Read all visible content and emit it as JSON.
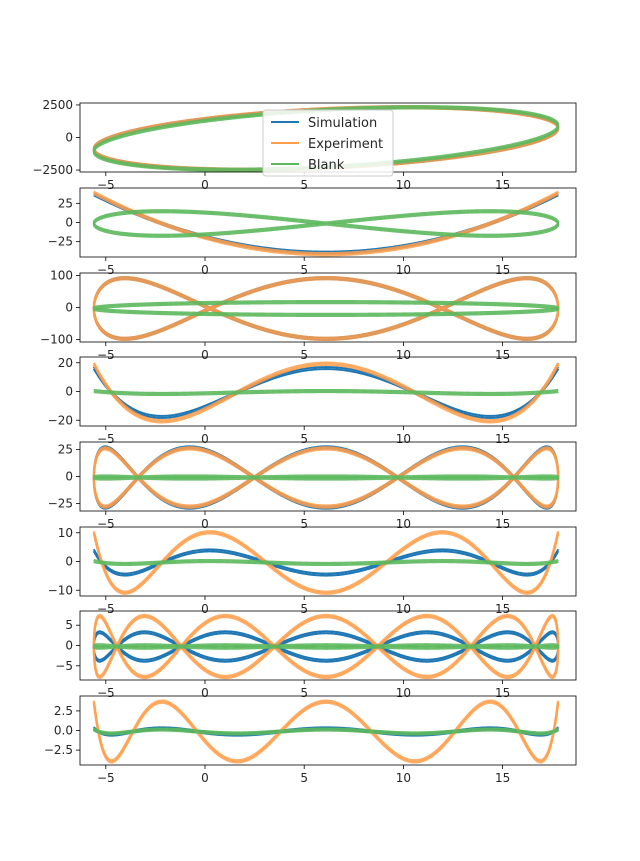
{
  "colors": {
    "simulation": "#1f77b4",
    "experiment": "#ff9e4a",
    "blank": "#5cb85c"
  },
  "legend": {
    "placement": "top-center",
    "entries": [
      "Simulation",
      "Experiment",
      "Blank"
    ]
  },
  "chart_data": [
    {
      "type": "line",
      "xlim": [
        -6.3,
        18.7
      ],
      "ylim": [
        -2650,
        2650
      ],
      "yticks": [
        -2500,
        0,
        2500
      ],
      "xticks": [
        -5,
        0,
        5,
        10,
        15
      ],
      "series": [
        {
          "name": "Simulation",
          "amplitude": 2400,
          "harmonic": 1,
          "phase_deg": 20
        },
        {
          "name": "Experiment",
          "amplitude": 2400,
          "harmonic": 1,
          "phase_deg": 20
        },
        {
          "name": "Blank",
          "amplitude": 2400,
          "harmonic": 1,
          "phase_deg": 24
        }
      ]
    },
    {
      "type": "line",
      "xlim": [
        -6.3,
        18.7
      ],
      "ylim": [
        -45,
        45
      ],
      "yticks": [
        -25,
        0,
        25
      ],
      "xticks": [
        -5,
        0,
        5,
        10,
        15
      ],
      "series": [
        {
          "name": "Simulation",
          "amplitude": 38,
          "harmonic": 2,
          "phase_deg": 90
        },
        {
          "name": "Experiment",
          "amplitude": 40,
          "harmonic": 2,
          "phase_deg": 90
        },
        {
          "name": "Blank",
          "amplitude": 16,
          "harmonic": 2,
          "phase_deg": 0
        }
      ]
    },
    {
      "type": "line",
      "xlim": [
        -6.3,
        18.7
      ],
      "ylim": [
        -108,
        108
      ],
      "yticks": [
        -100,
        0,
        100
      ],
      "xticks": [
        -5,
        0,
        5,
        10,
        15
      ],
      "series": [
        {
          "name": "Simulation",
          "amplitude": 95,
          "harmonic": 3,
          "phase_deg": 0
        },
        {
          "name": "Experiment",
          "amplitude": 95,
          "harmonic": 3,
          "phase_deg": 0
        },
        {
          "name": "Blank",
          "amplitude": 20,
          "harmonic": 1,
          "phase_deg": 0
        }
      ]
    },
    {
      "type": "line",
      "xlim": [
        -6.3,
        18.7
      ],
      "ylim": [
        -24,
        24
      ],
      "yticks": [
        -20,
        0,
        20
      ],
      "xticks": [
        -5,
        0,
        5,
        10,
        15
      ],
      "series": [
        {
          "name": "Simulation",
          "amplitude": 17,
          "harmonic": 4,
          "phase_deg": 90
        },
        {
          "name": "Experiment",
          "amplitude": 20,
          "harmonic": 4,
          "phase_deg": 90
        },
        {
          "name": "Blank",
          "amplitude": 1,
          "harmonic": 4,
          "phase_deg": 90
        }
      ]
    },
    {
      "type": "line",
      "xlim": [
        -6.3,
        18.7
      ],
      "ylim": [
        -32,
        32
      ],
      "yticks": [
        -25,
        0,
        25
      ],
      "xticks": [
        -5,
        0,
        5,
        10,
        15
      ],
      "series": [
        {
          "name": "Simulation",
          "amplitude": 28,
          "harmonic": 5,
          "phase_deg": 0
        },
        {
          "name": "Experiment",
          "amplitude": 27,
          "harmonic": 5,
          "phase_deg": 0
        },
        {
          "name": "Blank",
          "amplitude": 1,
          "harmonic": 5,
          "phase_deg": 0
        }
      ]
    },
    {
      "type": "line",
      "xlim": [
        -6.3,
        18.7
      ],
      "ylim": [
        -12,
        12
      ],
      "yticks": [
        -10,
        0,
        10
      ],
      "xticks": [
        -5,
        0,
        5,
        10,
        15
      ],
      "series": [
        {
          "name": "Simulation",
          "amplitude": 4.2,
          "harmonic": 6,
          "phase_deg": 90
        },
        {
          "name": "Experiment",
          "amplitude": 10.5,
          "harmonic": 6,
          "phase_deg": 90
        },
        {
          "name": "Blank",
          "amplitude": 0.5,
          "harmonic": 6,
          "phase_deg": 90
        }
      ]
    },
    {
      "type": "line",
      "xlim": [
        -6.3,
        18.7
      ],
      "ylim": [
        -8.5,
        8.5
      ],
      "yticks": [
        -5,
        0,
        5
      ],
      "xticks": [
        -5,
        0,
        5,
        10,
        15
      ],
      "series": [
        {
          "name": "Simulation",
          "amplitude": 3.5,
          "harmonic": 7,
          "phase_deg": 0
        },
        {
          "name": "Experiment",
          "amplitude": 7.5,
          "harmonic": 7,
          "phase_deg": 0
        },
        {
          "name": "Blank",
          "amplitude": 0.3,
          "harmonic": 7,
          "phase_deg": 0
        }
      ]
    },
    {
      "type": "line",
      "xlim": [
        -6.3,
        18.7
      ],
      "ylim": [
        -4.4,
        4.4
      ],
      "yticks": [
        -2.5,
        0.0,
        2.5
      ],
      "ytick_labels": [
        "−2.5",
        "0.0",
        "2.5"
      ],
      "xticks": [
        -5,
        0,
        5,
        10,
        15
      ],
      "series": [
        {
          "name": "Simulation",
          "amplitude": 0.4,
          "harmonic": 8,
          "phase_deg": 90
        },
        {
          "name": "Experiment",
          "amplitude": 3.8,
          "harmonic": 8,
          "phase_deg": 90
        },
        {
          "name": "Blank",
          "amplitude": 0.25,
          "harmonic": 8,
          "phase_deg": 90
        }
      ]
    }
  ]
}
